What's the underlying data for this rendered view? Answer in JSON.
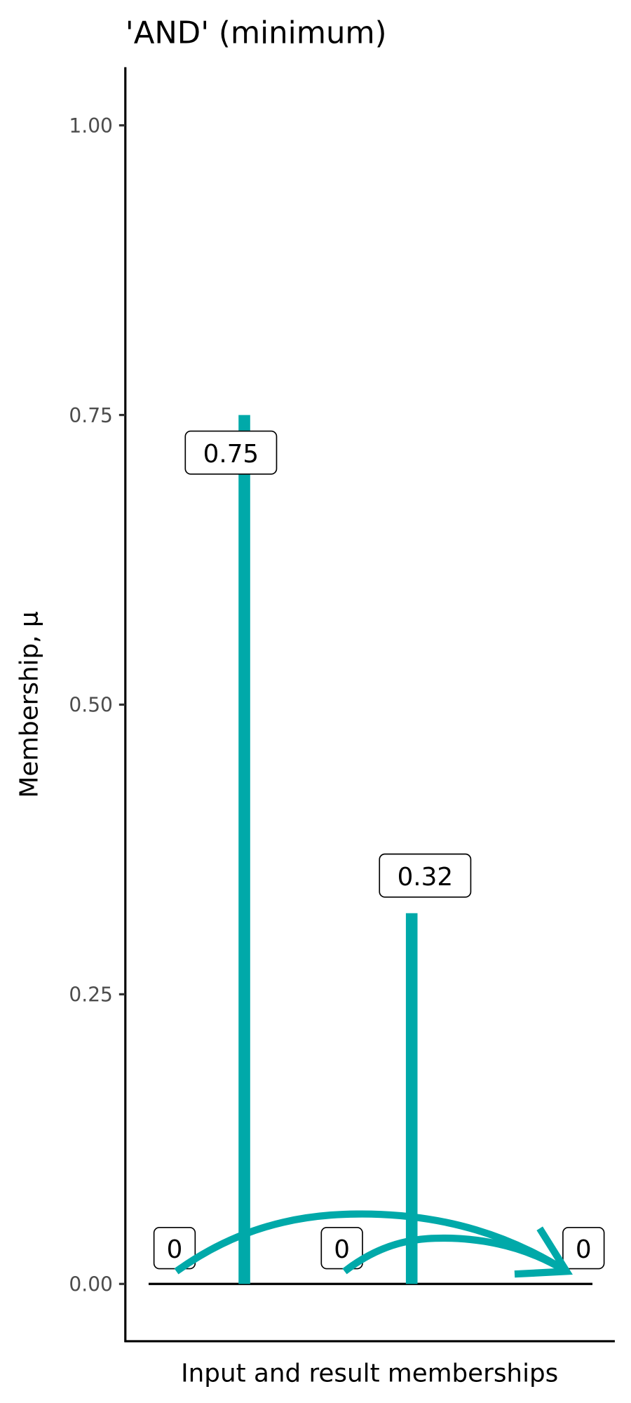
{
  "chart_data": {
    "type": "bar",
    "title": "'AND' (minimum)",
    "xlabel": "Input and result memberships",
    "ylabel": "Membership, μ",
    "ylim": [
      -0.1,
      1.05
    ],
    "yticks": [
      "0.00",
      "0.25",
      "0.50",
      "0.75",
      "1.00"
    ],
    "ytick_values": [
      0,
      0.25,
      0.5,
      0.75,
      1.0
    ],
    "grid": false,
    "color": "#00A9A9",
    "segments": [
      {
        "value": 0.75,
        "label": "0.75"
      },
      {
        "value": 0.32,
        "label": "0.32"
      }
    ],
    "zero_labels": [
      "0",
      "0",
      "0"
    ],
    "arrows": "curved arrows from the two 0 labels to the result 0 label"
  }
}
